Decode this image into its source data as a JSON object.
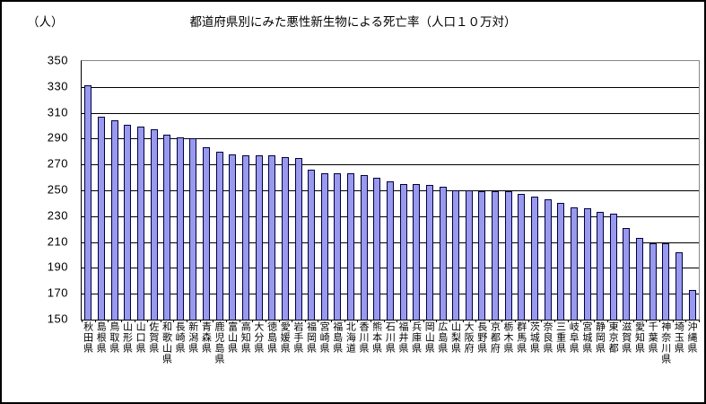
{
  "chart_data": {
    "type": "bar",
    "title": "都道府県別にみた悪性新生物による死亡率（人口１０万対）",
    "ylabel_unit": "（人）",
    "xlabel": "",
    "ylim": [
      150,
      350
    ],
    "ytick_step": 20,
    "yticks": [
      350,
      330,
      310,
      290,
      270,
      250,
      230,
      210,
      190,
      170,
      150
    ],
    "grid": true,
    "legend": false,
    "bar_color": "#9999EE",
    "bar_border_color": "#000040",
    "frame_color": "#888888",
    "axis_color": "#000000",
    "categories": [
      "秋田県",
      "島根県",
      "鳥取県",
      "山形県",
      "山口県",
      "佐賀県",
      "和歌山県",
      "長崎県",
      "新潟県",
      "青森県",
      "鹿児島県",
      "富山県",
      "高知県",
      "大分県",
      "徳島県",
      "愛媛県",
      "岩手県",
      "福岡県",
      "宮崎県",
      "福島県",
      "北海道",
      "香川県",
      "熊本県",
      "石川県",
      "福井県",
      "兵庫県",
      "岡山県",
      "広島県",
      "山梨県",
      "大阪府",
      "長野県",
      "京都府",
      "栃木県",
      "群馬県",
      "茨城県",
      "奈良県",
      "三重県",
      "岐阜県",
      "宮城県",
      "静岡県",
      "東京都",
      "滋賀県",
      "愛知県",
      "千葉県",
      "神奈川県",
      "埼玉県",
      "沖縄県"
    ],
    "values": [
      331,
      307,
      304,
      301,
      299,
      297,
      293,
      291,
      290,
      283,
      280,
      278,
      277,
      277,
      277,
      276,
      275,
      266,
      263,
      263,
      263,
      262,
      260,
      257,
      255,
      255,
      254,
      253,
      250,
      250,
      249,
      249,
      249,
      247,
      245,
      243,
      240,
      237,
      236,
      233,
      232,
      221,
      213,
      209,
      209,
      202,
      173
    ]
  }
}
